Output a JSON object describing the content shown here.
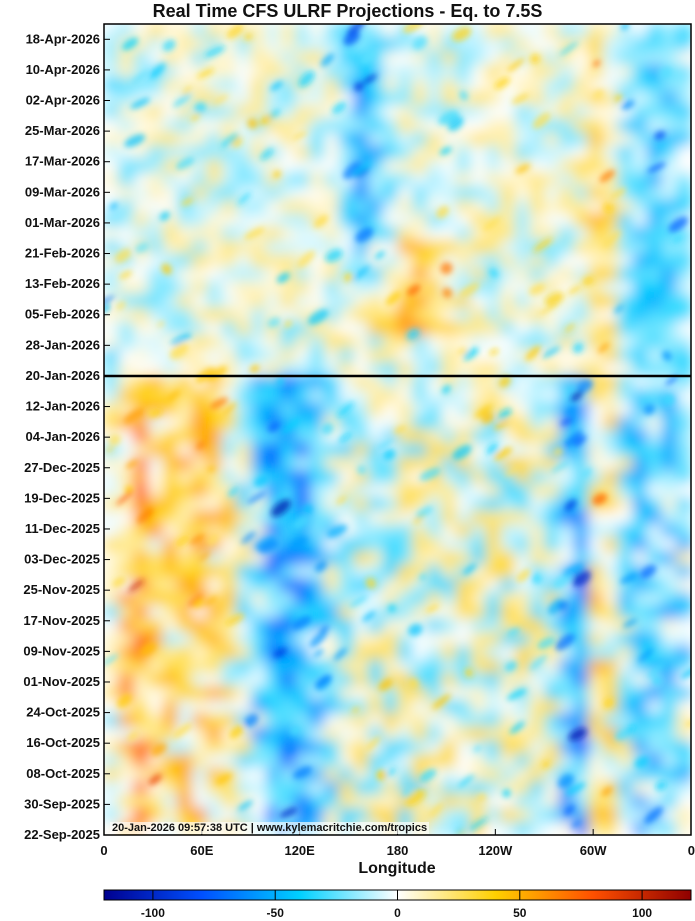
{
  "chart_data": {
    "type": "heatmap",
    "title": "Real Time CFS ULRF Projections - Eq. to 7.5S",
    "xlabel": "Longitude",
    "ylabel": "",
    "x_tick_labels": [
      "0",
      "60E",
      "120E",
      "180",
      "120W",
      "60W",
      "0"
    ],
    "x_range_degrees_east": [
      0,
      360
    ],
    "y_tick_labels": [
      "18-Apr-2026",
      "10-Apr-2026",
      "02-Apr-2026",
      "25-Mar-2026",
      "17-Mar-2026",
      "09-Mar-2026",
      "01-Mar-2026",
      "21-Feb-2026",
      "13-Feb-2026",
      "05-Feb-2026",
      "28-Jan-2026",
      "20-Jan-2026",
      "12-Jan-2026",
      "04-Jan-2026",
      "27-Dec-2025",
      "19-Dec-2025",
      "11-Dec-2025",
      "03-Dec-2025",
      "25-Nov-2025",
      "17-Nov-2025",
      "09-Nov-2025",
      "01-Nov-2025",
      "24-Oct-2025",
      "16-Oct-2025",
      "08-Oct-2025",
      "30-Sep-2025",
      "22-Sep-2025"
    ],
    "y_range": [
      "22-Sep-2025",
      "22-Apr-2026"
    ],
    "current_date_line": "20-Jan-2026",
    "colorbar": {
      "range": [
        -120,
        120
      ],
      "tick_labels": [
        "-100",
        "-50",
        "0",
        "50",
        "100"
      ],
      "colormap": [
        "#00008f",
        "#0050ff",
        "#00d0ff",
        "#ffffff",
        "#ffd000",
        "#ff5000",
        "#8f0000"
      ]
    },
    "features": [
      {
        "lon_center": 160,
        "lon_width": 22,
        "value": -40,
        "dates": [
          "15-Feb-2026",
          "22-Apr-2026"
        ]
      },
      {
        "lon_center": 340,
        "lon_width": 40,
        "value": -30,
        "dates": [
          "22-Sep-2025",
          "22-Apr-2026"
        ]
      },
      {
        "lon_center": 290,
        "lon_width": 12,
        "value": -55,
        "dates": [
          "22-Sep-2025",
          "20-Jan-2026"
        ]
      },
      {
        "lon_center": 305,
        "lon_width": 14,
        "value": 35,
        "dates": [
          "22-Sep-2025",
          "22-Apr-2026"
        ]
      },
      {
        "lon_center": 190,
        "lon_width": 40,
        "value": 35,
        "dates": [
          "01-Feb-2026",
          "25-Feb-2026"
        ]
      },
      {
        "lon_center": 20,
        "lon_width": 20,
        "value": 45,
        "dates": [
          "22-Sep-2025",
          "20-Jan-2026"
        ]
      },
      {
        "lon_center": 110,
        "lon_width": 40,
        "value": -50,
        "dates": [
          "22-Sep-2025",
          "20-Jan-2026"
        ]
      },
      {
        "lon_center": 65,
        "lon_width": 40,
        "value": 30,
        "dates": [
          "22-Sep-2025",
          "20-Jan-2026"
        ]
      }
    ]
  },
  "credit": "20-Jan-2026 09:57:38 UTC | www.kylemacritchie.com/tropics",
  "colors": {
    "negative_strong": "#00008f",
    "negative": "#00d0ff",
    "neutral": "#ffffff",
    "positive": "#ffd000",
    "positive_strong": "#8f0000"
  }
}
